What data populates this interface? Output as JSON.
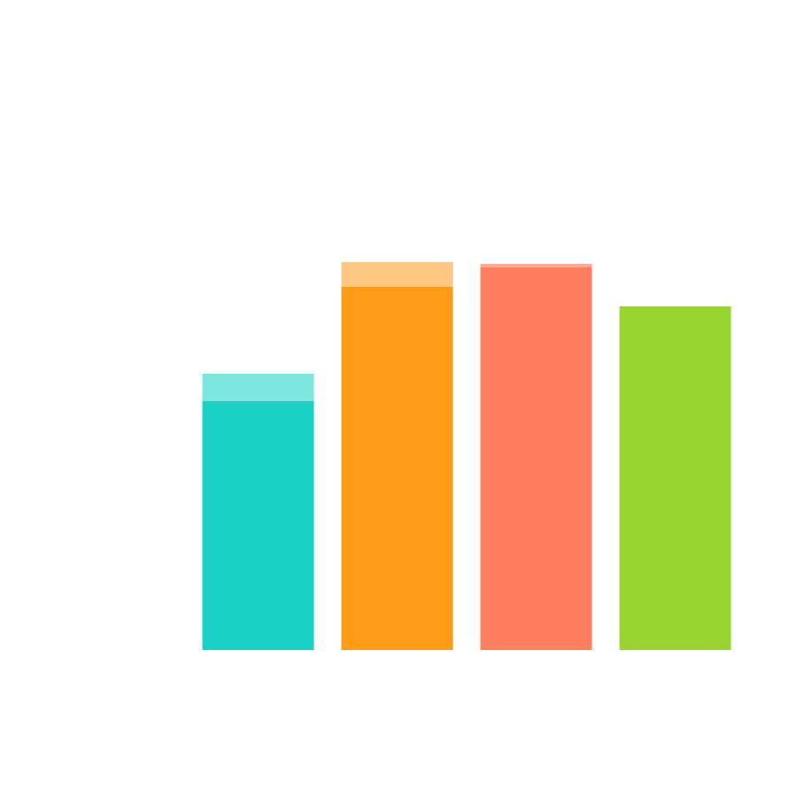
{
  "chart_data": {
    "type": "bar",
    "stacked": true,
    "categories": [
      "",
      "",
      "",
      ""
    ],
    "series": [
      {
        "values": [
          281,
          410,
          432,
          388
        ],
        "colors": [
          "#19d1c5",
          "#ff9c17",
          "#ff7e60",
          "#98d430"
        ]
      },
      {
        "values": [
          31,
          28,
          4,
          0
        ],
        "colors": [
          "#7ce6df",
          "#ffc882",
          "#ffa894",
          "#98d430"
        ]
      }
    ],
    "title": "",
    "xlabel": "",
    "ylabel": "",
    "ylim": [
      0,
      734
    ],
    "grid": false,
    "legend": "none"
  }
}
